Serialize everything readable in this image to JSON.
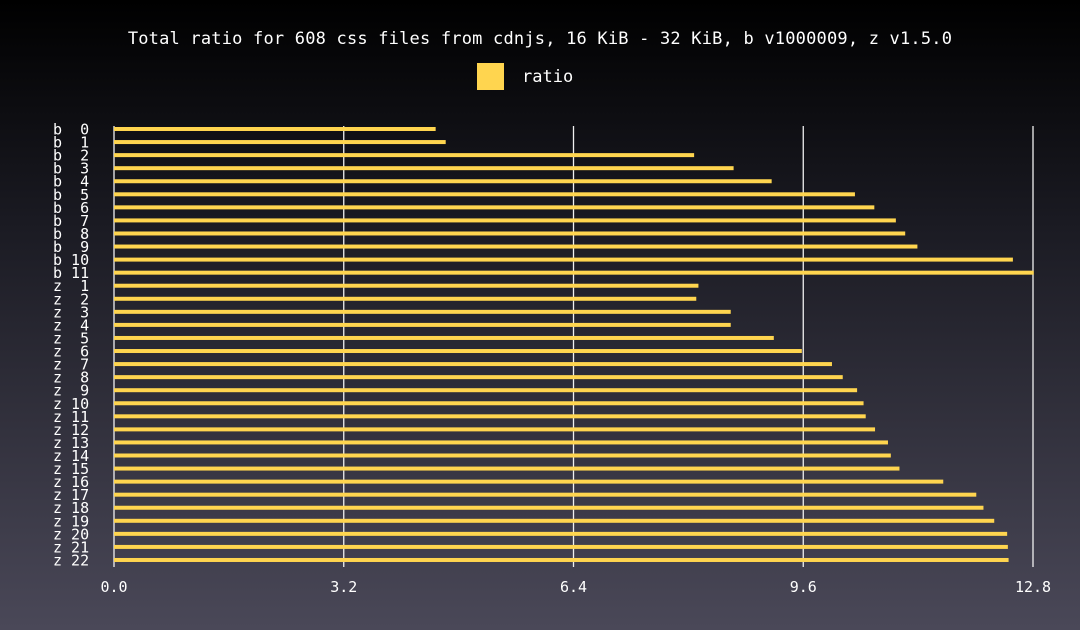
{
  "chart_data": {
    "type": "bar",
    "orientation": "horizontal",
    "title": "Total ratio for 608 css files from cdnjs, 16 KiB - 32 KiB, b v1000009, z v1.5.0",
    "xlabel": "",
    "ylabel": "",
    "xlim": [
      0,
      12.8
    ],
    "xticks": [
      "0.0",
      "3.2",
      "6.4",
      "9.6",
      "12.8"
    ],
    "xtick_values": [
      0,
      3.2,
      6.4,
      9.6,
      12.8
    ],
    "grid": true,
    "legend_position": "top-center",
    "bar_color": "#ffd54f",
    "categories": [
      "b  0",
      "b  1",
      "b  2",
      "b  3",
      "b  4",
      "b  5",
      "b  6",
      "b  7",
      "b  8",
      "b  9",
      "b 10",
      "b 11",
      "z  1",
      "z  2",
      "z  3",
      "z  4",
      "z  5",
      "z  6",
      "z  7",
      "z  8",
      "z  9",
      "z 10",
      "z 11",
      "z 12",
      "z 13",
      "z 14",
      "z 15",
      "z 16",
      "z 17",
      "z 18",
      "z 19",
      "z 20",
      "z 21",
      "z 22"
    ],
    "series": [
      {
        "name": "ratio",
        "values": [
          4.48,
          4.62,
          8.08,
          8.63,
          9.16,
          10.32,
          10.59,
          10.89,
          11.02,
          11.19,
          12.52,
          12.81,
          8.14,
          8.11,
          8.59,
          8.59,
          9.19,
          9.58,
          10.0,
          10.15,
          10.35,
          10.44,
          10.47,
          10.6,
          10.78,
          10.82,
          10.94,
          11.55,
          12.01,
          12.11,
          12.26,
          12.44,
          12.45,
          12.46
        ]
      }
    ]
  }
}
